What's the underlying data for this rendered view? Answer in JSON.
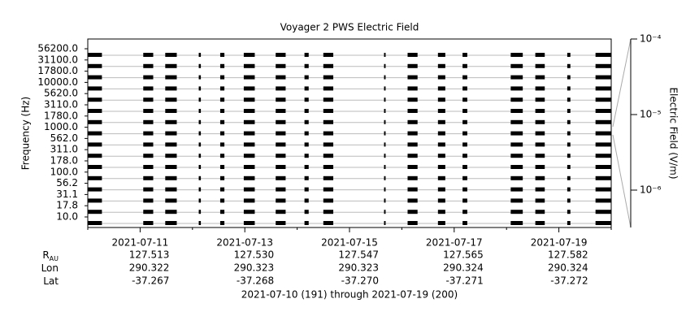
{
  "chart_data": {
    "type": "timeline",
    "title": "Voyager 2 PWS Electric Field",
    "ylabel": "Frequency (Hz)",
    "categories": [
      "56200.0",
      "31100.0",
      "17800.0",
      "10000.0",
      "5620.0",
      "3110.0",
      "1780.0",
      "1000.0",
      "562.0",
      "311.0",
      "178.0",
      "100.0",
      "56.2",
      "31.1",
      "17.8",
      "10.0"
    ],
    "xlim": [
      0,
      10
    ],
    "xticks": [
      {
        "value": 1,
        "label": "2021-07-11"
      },
      {
        "value": 3,
        "label": "2021-07-13"
      },
      {
        "value": 5,
        "label": "2021-07-15"
      },
      {
        "value": 7,
        "label": "2021-07-17"
      },
      {
        "value": 9,
        "label": "2021-07-19"
      }
    ],
    "xminor_ticks": [
      0,
      2,
      4,
      6,
      8,
      10
    ],
    "color": "#000000",
    "segments": [
      [
        0,
        0.27
      ],
      [
        1.06,
        1.25
      ],
      [
        1.48,
        1.7
      ],
      [
        2.12,
        2.16
      ],
      [
        2.53,
        2.61
      ],
      [
        2.98,
        3.19
      ],
      [
        3.59,
        3.78
      ],
      [
        4.14,
        4.22
      ],
      [
        4.5,
        4.69
      ],
      [
        5.66,
        5.69
      ],
      [
        6.11,
        6.3
      ],
      [
        6.69,
        6.83
      ],
      [
        7.16,
        7.25
      ],
      [
        8.08,
        8.31
      ],
      [
        8.55,
        8.73
      ],
      [
        9.16,
        9.22
      ],
      [
        9.7,
        10
      ]
    ],
    "colorbar": {
      "label": "Electric Field (V/m)",
      "log": true,
      "lim": [
        3.2e-07,
        0.0001
      ],
      "ticks": [
        {
          "value": 0.0001,
          "label": "10⁻⁴"
        },
        {
          "value": 1e-05,
          "label": "10⁻⁵"
        },
        {
          "value": 1e-06,
          "label": "10⁻⁶"
        }
      ]
    },
    "ephemeris": [
      {
        "label": "R",
        "sub": "AU",
        "values": [
          "127.513",
          "127.530",
          "127.547",
          "127.565",
          "127.582"
        ]
      },
      {
        "label": "Lon",
        "values": [
          "290.322",
          "290.323",
          "290.323",
          "290.324",
          "290.324"
        ]
      },
      {
        "label": "Lat",
        "values": [
          "-37.267",
          "-37.268",
          "-37.270",
          "-37.271",
          "-37.272"
        ]
      }
    ],
    "footer": "2021-07-10 (191) through 2021-07-19 (200)"
  }
}
